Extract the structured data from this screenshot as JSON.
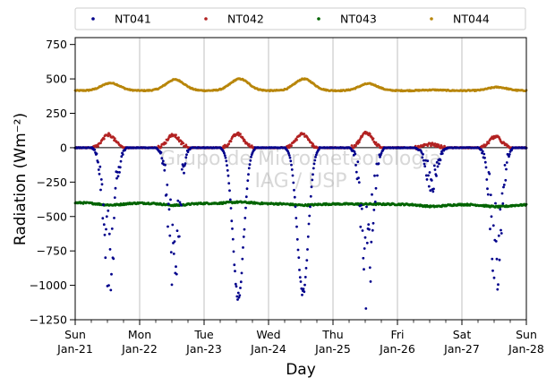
{
  "chart_data": {
    "type": "scatter",
    "title": "",
    "xlabel": "Day",
    "ylabel": "Radiation (Wm⁻²)",
    "ylim": [
      -1250,
      800
    ],
    "yticks": [
      -1250,
      -1000,
      -750,
      -500,
      -250,
      0,
      250,
      500,
      750
    ],
    "xlim": [
      0,
      7
    ],
    "xtick_labels": [
      {
        "x": 0,
        "day": "Sun",
        "date": "Jan-21"
      },
      {
        "x": 1,
        "day": "Mon",
        "date": "Jan-22"
      },
      {
        "x": 2,
        "day": "Tue",
        "date": "Jan-23"
      },
      {
        "x": 3,
        "day": "Wed",
        "date": "Jan-24"
      },
      {
        "x": 4,
        "day": "Thu",
        "date": "Jan-25"
      },
      {
        "x": 5,
        "day": "Fri",
        "date": "Jan-26"
      },
      {
        "x": 6,
        "day": "Sat",
        "date": "Jan-27"
      },
      {
        "x": 7,
        "day": "Sun",
        "date": "Jan-28"
      }
    ],
    "grid": "vertical",
    "legend_position": "top",
    "watermark": [
      "Grupo de Micrometeorologia",
      "IAG / USP"
    ],
    "series": [
      {
        "name": "NT041",
        "color": "#00008b",
        "baseline": 0,
        "daily_min": [
          -1070,
          -1060,
          -1110,
          -1090,
          -1200,
          -330,
          -1070
        ]
      },
      {
        "name": "NT042",
        "color": "#b22222",
        "baseline": 0,
        "daily_max": [
          95,
          95,
          100,
          100,
          110,
          25,
          80
        ]
      },
      {
        "name": "NT043",
        "color": "#006400",
        "baseline": -400,
        "daily_bump": [
          -15,
          -15,
          10,
          -10,
          0,
          -15,
          -15
        ]
      },
      {
        "name": "NT044",
        "color": "#b8860b",
        "baseline": 415,
        "daily_peak": [
          470,
          495,
          500,
          500,
          465,
          420,
          440
        ]
      }
    ]
  }
}
